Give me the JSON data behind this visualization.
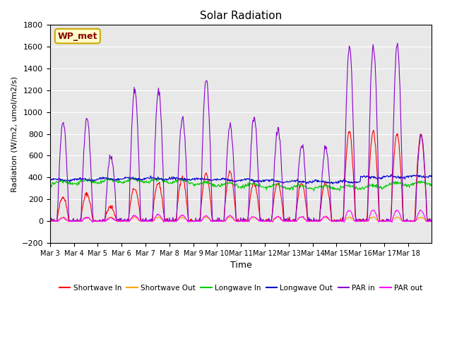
{
  "title": "Solar Radiation",
  "ylabel": "Radiation (W/m2, umol/m2/s)",
  "xlabel": "Time",
  "ylim": [
    -200,
    1800
  ],
  "annotation": "WP_met",
  "x_tick_labels": [
    "Mar 3",
    "Mar 4",
    "Mar 5",
    "Mar 6",
    "Mar 7",
    "Mar 8",
    "Mar 9",
    "Mar 10",
    "Mar 11",
    "Mar 12",
    "Mar 13",
    "Mar 14",
    "Mar 15",
    "Mar 16",
    "Mar 17",
    "Mar 18"
  ],
  "bg_color": "#e8e8e8",
  "series": [
    {
      "name": "Shortwave In",
      "color": "#ff0000"
    },
    {
      "name": "Shortwave Out",
      "color": "#ffa500"
    },
    {
      "name": "Longwave In",
      "color": "#00cc00"
    },
    {
      "name": "Longwave Out",
      "color": "#0000cc"
    },
    {
      "name": "PAR in",
      "color": "#8800cc"
    },
    {
      "name": "PAR out",
      "color": "#ff00ff"
    }
  ],
  "yticks": [
    -200,
    0,
    200,
    400,
    600,
    800,
    1000,
    1200,
    1400,
    1600,
    1800
  ]
}
